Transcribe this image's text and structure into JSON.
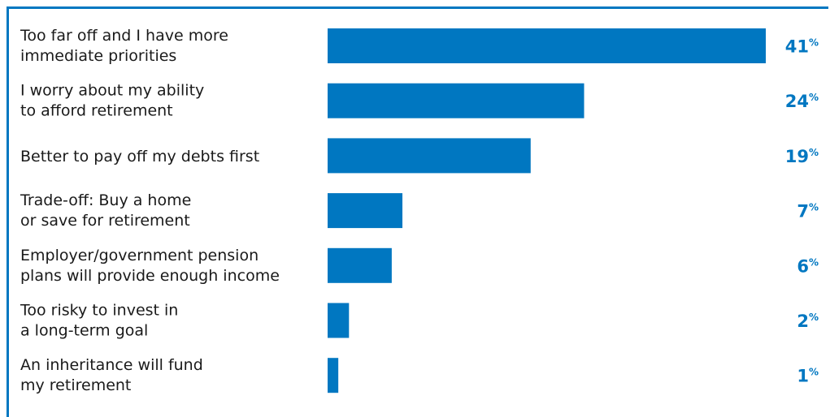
{
  "chart_data": {
    "type": "bar",
    "orientation": "horizontal",
    "categories": [
      [
        "Too far off and I have more",
        "immediate priorities"
      ],
      [
        "I worry about my ability",
        "to afford retirement"
      ],
      [
        "Better to pay off my debts first"
      ],
      [
        "Trade-off: Buy a home",
        "or save for retirement"
      ],
      [
        "Employer/government pension",
        "plans will provide enough income"
      ],
      [
        "Too risky to invest in",
        "a long-term goal"
      ],
      [
        "An inheritance will fund",
        "my retirement"
      ]
    ],
    "values": [
      41,
      24,
      19,
      7,
      6,
      2,
      1
    ],
    "value_suffix": "%",
    "xlim": [
      0,
      41
    ],
    "grid": false,
    "bar_color": "#0077c1",
    "value_color": "#0077c1",
    "frame_color": "#0077c1"
  }
}
